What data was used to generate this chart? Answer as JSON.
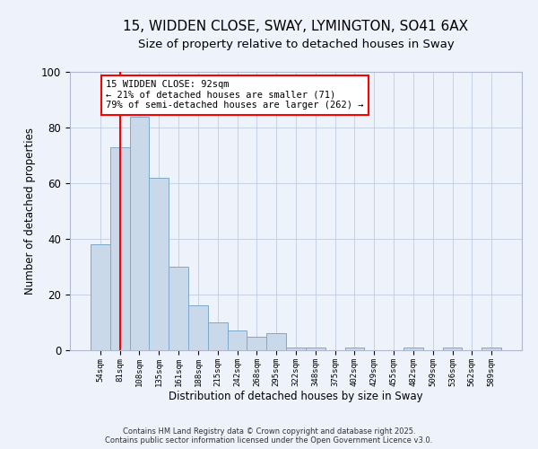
{
  "title1": "15, WIDDEN CLOSE, SWAY, LYMINGTON, SO41 6AX",
  "title2": "Size of property relative to detached houses in Sway",
  "xlabel": "Distribution of detached houses by size in Sway",
  "ylabel": "Number of detached properties",
  "categories": [
    "54sqm",
    "81sqm",
    "108sqm",
    "135sqm",
    "161sqm",
    "188sqm",
    "215sqm",
    "242sqm",
    "268sqm",
    "295sqm",
    "322sqm",
    "348sqm",
    "375sqm",
    "402sqm",
    "429sqm",
    "455sqm",
    "482sqm",
    "509sqm",
    "536sqm",
    "562sqm",
    "589sqm"
  ],
  "values": [
    38,
    73,
    84,
    62,
    30,
    16,
    10,
    7,
    5,
    6,
    1,
    1,
    0,
    1,
    0,
    0,
    1,
    0,
    1,
    0,
    1
  ],
  "bar_color": "#c9d9ea",
  "bar_edge_color": "#7fa8c8",
  "vline_color": "red",
  "vline_x": 1.5,
  "annotation_text": "15 WIDDEN CLOSE: 92sqm\n← 21% of detached houses are smaller (71)\n79% of semi-detached houses are larger (262) →",
  "annotation_box_color": "white",
  "annotation_box_edge": "red",
  "ylim": [
    0,
    100
  ],
  "yticks": [
    0,
    20,
    40,
    60,
    80,
    100
  ],
  "footer1": "Contains HM Land Registry data © Crown copyright and database right 2025.",
  "footer2": "Contains public sector information licensed under the Open Government Licence v3.0.",
  "background_color": "#eef2fb",
  "title_fontsize": 11,
  "subtitle_fontsize": 9.5
}
